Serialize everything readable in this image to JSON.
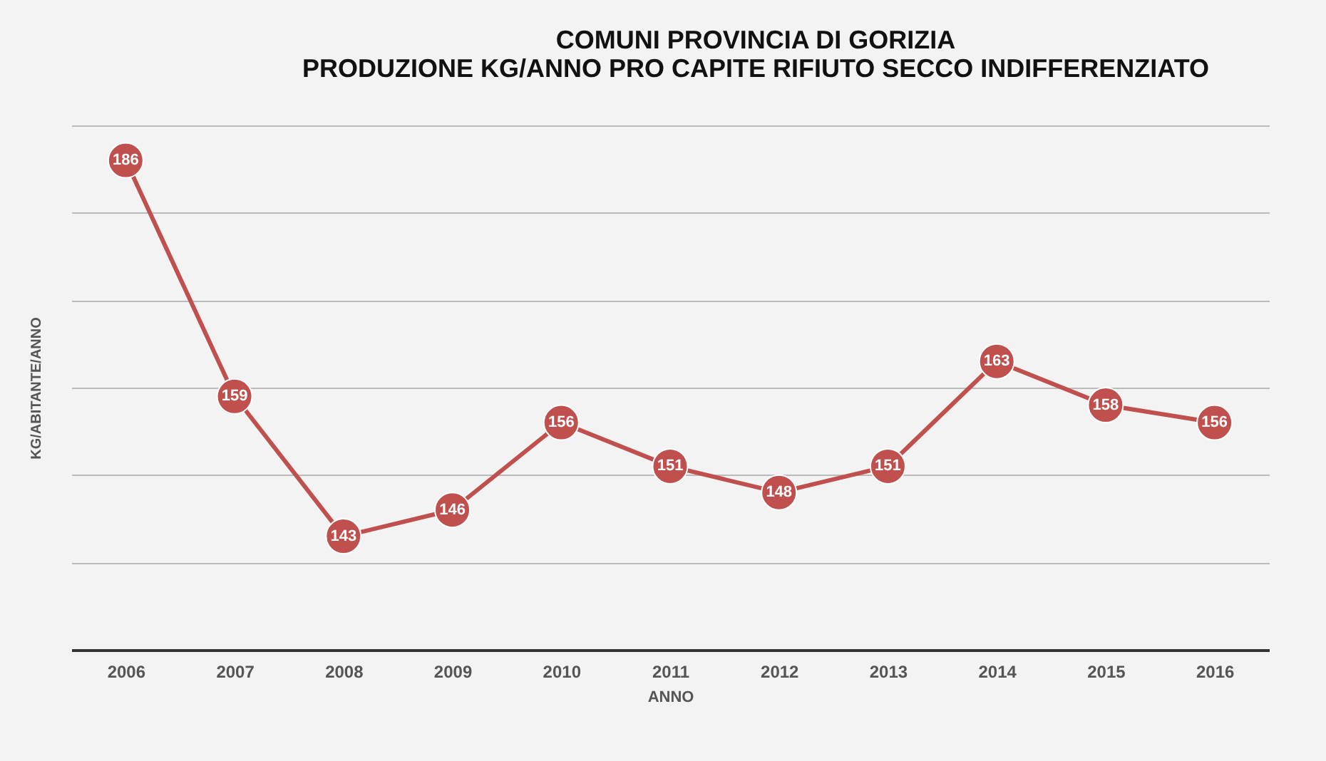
{
  "chart_data": {
    "type": "line",
    "title": [
      "COMUNI PROVINCIA DI GORIZIA",
      "PRODUZIONE KG/ANNO PRO CAPITE RIFIUTO SECCO INDIFFERENZIATO"
    ],
    "xlabel": "ANNO",
    "ylabel": "KG/ABITANTE/ANNO",
    "categories": [
      "2006",
      "2007",
      "2008",
      "2009",
      "2010",
      "2011",
      "2012",
      "2013",
      "2014",
      "2015",
      "2016"
    ],
    "series": [
      {
        "color": "#c0504d",
        "values": [
          186,
          159,
          143,
          146,
          156,
          151,
          148,
          151,
          163,
          158,
          156
        ]
      }
    ],
    "ylim": [
      130,
      190
    ],
    "yticks": [
      {
        "value": 130,
        "label": null
      },
      {
        "value": 140,
        "label": null
      },
      {
        "value": 150,
        "label": null
      },
      {
        "value": 160,
        "label": null
      },
      {
        "value": 170,
        "label": null
      },
      {
        "value": 180,
        "label": null
      },
      {
        "value": 190,
        "label": null
      }
    ],
    "tick_labels": "x",
    "grid": "y",
    "data_labels": true,
    "marker": "circle",
    "line_style": "solid",
    "legend": false
  }
}
